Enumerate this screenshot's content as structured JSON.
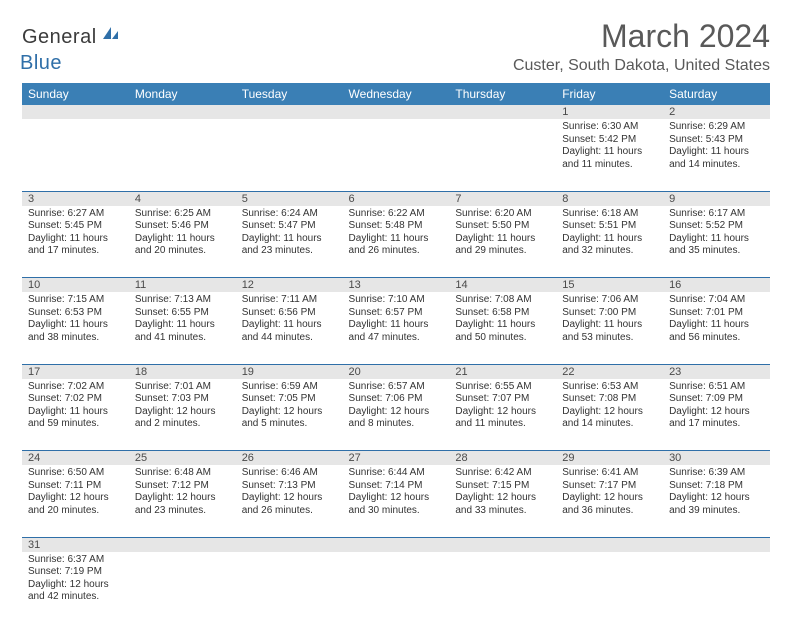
{
  "logo": {
    "general": "General",
    "blue": "Blue"
  },
  "title": "March 2024",
  "location": "Custer, South Dakota, United States",
  "colors": {
    "header_bg": "#3a7fb5",
    "header_text": "#ffffff",
    "daynum_bg": "#e6e6e6",
    "border": "#2f6fa8",
    "text": "#333333",
    "title_text": "#595959"
  },
  "weekdays": [
    "Sunday",
    "Monday",
    "Tuesday",
    "Wednesday",
    "Thursday",
    "Friday",
    "Saturday"
  ],
  "weeks": [
    [
      null,
      null,
      null,
      null,
      null,
      {
        "n": "1",
        "sr": "Sunrise: 6:30 AM",
        "ss": "Sunset: 5:42 PM",
        "d1": "Daylight: 11 hours",
        "d2": "and 11 minutes."
      },
      {
        "n": "2",
        "sr": "Sunrise: 6:29 AM",
        "ss": "Sunset: 5:43 PM",
        "d1": "Daylight: 11 hours",
        "d2": "and 14 minutes."
      }
    ],
    [
      {
        "n": "3",
        "sr": "Sunrise: 6:27 AM",
        "ss": "Sunset: 5:45 PM",
        "d1": "Daylight: 11 hours",
        "d2": "and 17 minutes."
      },
      {
        "n": "4",
        "sr": "Sunrise: 6:25 AM",
        "ss": "Sunset: 5:46 PM",
        "d1": "Daylight: 11 hours",
        "d2": "and 20 minutes."
      },
      {
        "n": "5",
        "sr": "Sunrise: 6:24 AM",
        "ss": "Sunset: 5:47 PM",
        "d1": "Daylight: 11 hours",
        "d2": "and 23 minutes."
      },
      {
        "n": "6",
        "sr": "Sunrise: 6:22 AM",
        "ss": "Sunset: 5:48 PM",
        "d1": "Daylight: 11 hours",
        "d2": "and 26 minutes."
      },
      {
        "n": "7",
        "sr": "Sunrise: 6:20 AM",
        "ss": "Sunset: 5:50 PM",
        "d1": "Daylight: 11 hours",
        "d2": "and 29 minutes."
      },
      {
        "n": "8",
        "sr": "Sunrise: 6:18 AM",
        "ss": "Sunset: 5:51 PM",
        "d1": "Daylight: 11 hours",
        "d2": "and 32 minutes."
      },
      {
        "n": "9",
        "sr": "Sunrise: 6:17 AM",
        "ss": "Sunset: 5:52 PM",
        "d1": "Daylight: 11 hours",
        "d2": "and 35 minutes."
      }
    ],
    [
      {
        "n": "10",
        "sr": "Sunrise: 7:15 AM",
        "ss": "Sunset: 6:53 PM",
        "d1": "Daylight: 11 hours",
        "d2": "and 38 minutes."
      },
      {
        "n": "11",
        "sr": "Sunrise: 7:13 AM",
        "ss": "Sunset: 6:55 PM",
        "d1": "Daylight: 11 hours",
        "d2": "and 41 minutes."
      },
      {
        "n": "12",
        "sr": "Sunrise: 7:11 AM",
        "ss": "Sunset: 6:56 PM",
        "d1": "Daylight: 11 hours",
        "d2": "and 44 minutes."
      },
      {
        "n": "13",
        "sr": "Sunrise: 7:10 AM",
        "ss": "Sunset: 6:57 PM",
        "d1": "Daylight: 11 hours",
        "d2": "and 47 minutes."
      },
      {
        "n": "14",
        "sr": "Sunrise: 7:08 AM",
        "ss": "Sunset: 6:58 PM",
        "d1": "Daylight: 11 hours",
        "d2": "and 50 minutes."
      },
      {
        "n": "15",
        "sr": "Sunrise: 7:06 AM",
        "ss": "Sunset: 7:00 PM",
        "d1": "Daylight: 11 hours",
        "d2": "and 53 minutes."
      },
      {
        "n": "16",
        "sr": "Sunrise: 7:04 AM",
        "ss": "Sunset: 7:01 PM",
        "d1": "Daylight: 11 hours",
        "d2": "and 56 minutes."
      }
    ],
    [
      {
        "n": "17",
        "sr": "Sunrise: 7:02 AM",
        "ss": "Sunset: 7:02 PM",
        "d1": "Daylight: 11 hours",
        "d2": "and 59 minutes."
      },
      {
        "n": "18",
        "sr": "Sunrise: 7:01 AM",
        "ss": "Sunset: 7:03 PM",
        "d1": "Daylight: 12 hours",
        "d2": "and 2 minutes."
      },
      {
        "n": "19",
        "sr": "Sunrise: 6:59 AM",
        "ss": "Sunset: 7:05 PM",
        "d1": "Daylight: 12 hours",
        "d2": "and 5 minutes."
      },
      {
        "n": "20",
        "sr": "Sunrise: 6:57 AM",
        "ss": "Sunset: 7:06 PM",
        "d1": "Daylight: 12 hours",
        "d2": "and 8 minutes."
      },
      {
        "n": "21",
        "sr": "Sunrise: 6:55 AM",
        "ss": "Sunset: 7:07 PM",
        "d1": "Daylight: 12 hours",
        "d2": "and 11 minutes."
      },
      {
        "n": "22",
        "sr": "Sunrise: 6:53 AM",
        "ss": "Sunset: 7:08 PM",
        "d1": "Daylight: 12 hours",
        "d2": "and 14 minutes."
      },
      {
        "n": "23",
        "sr": "Sunrise: 6:51 AM",
        "ss": "Sunset: 7:09 PM",
        "d1": "Daylight: 12 hours",
        "d2": "and 17 minutes."
      }
    ],
    [
      {
        "n": "24",
        "sr": "Sunrise: 6:50 AM",
        "ss": "Sunset: 7:11 PM",
        "d1": "Daylight: 12 hours",
        "d2": "and 20 minutes."
      },
      {
        "n": "25",
        "sr": "Sunrise: 6:48 AM",
        "ss": "Sunset: 7:12 PM",
        "d1": "Daylight: 12 hours",
        "d2": "and 23 minutes."
      },
      {
        "n": "26",
        "sr": "Sunrise: 6:46 AM",
        "ss": "Sunset: 7:13 PM",
        "d1": "Daylight: 12 hours",
        "d2": "and 26 minutes."
      },
      {
        "n": "27",
        "sr": "Sunrise: 6:44 AM",
        "ss": "Sunset: 7:14 PM",
        "d1": "Daylight: 12 hours",
        "d2": "and 30 minutes."
      },
      {
        "n": "28",
        "sr": "Sunrise: 6:42 AM",
        "ss": "Sunset: 7:15 PM",
        "d1": "Daylight: 12 hours",
        "d2": "and 33 minutes."
      },
      {
        "n": "29",
        "sr": "Sunrise: 6:41 AM",
        "ss": "Sunset: 7:17 PM",
        "d1": "Daylight: 12 hours",
        "d2": "and 36 minutes."
      },
      {
        "n": "30",
        "sr": "Sunrise: 6:39 AM",
        "ss": "Sunset: 7:18 PM",
        "d1": "Daylight: 12 hours",
        "d2": "and 39 minutes."
      }
    ],
    [
      {
        "n": "31",
        "sr": "Sunrise: 6:37 AM",
        "ss": "Sunset: 7:19 PM",
        "d1": "Daylight: 12 hours",
        "d2": "and 42 minutes."
      },
      null,
      null,
      null,
      null,
      null,
      null
    ]
  ]
}
